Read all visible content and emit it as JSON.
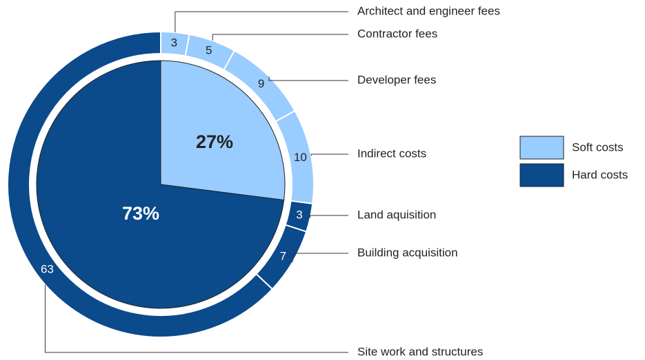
{
  "chart_data": {
    "type": "nested-pie",
    "inner": {
      "categories": [
        "Soft costs",
        "Hard costs"
      ],
      "values": [
        27,
        73
      ],
      "value_labels": [
        "27%",
        "73%"
      ],
      "colors": [
        "#99ccff",
        "#0b4a8b"
      ]
    },
    "outer": {
      "categories": [
        "Architect and engineer fees",
        "Contractor fees",
        "Developer fees",
        "Indirect costs",
        "Land aquisition",
        "Building acquisition",
        "Site work and structures"
      ],
      "values": [
        3,
        5,
        9,
        10,
        3,
        7,
        63
      ],
      "colors": [
        "#99ccff",
        "#99ccff",
        "#99ccff",
        "#99ccff",
        "#0b4a8b",
        "#0b4a8b",
        "#0b4a8b"
      ]
    },
    "legend": "right"
  }
}
